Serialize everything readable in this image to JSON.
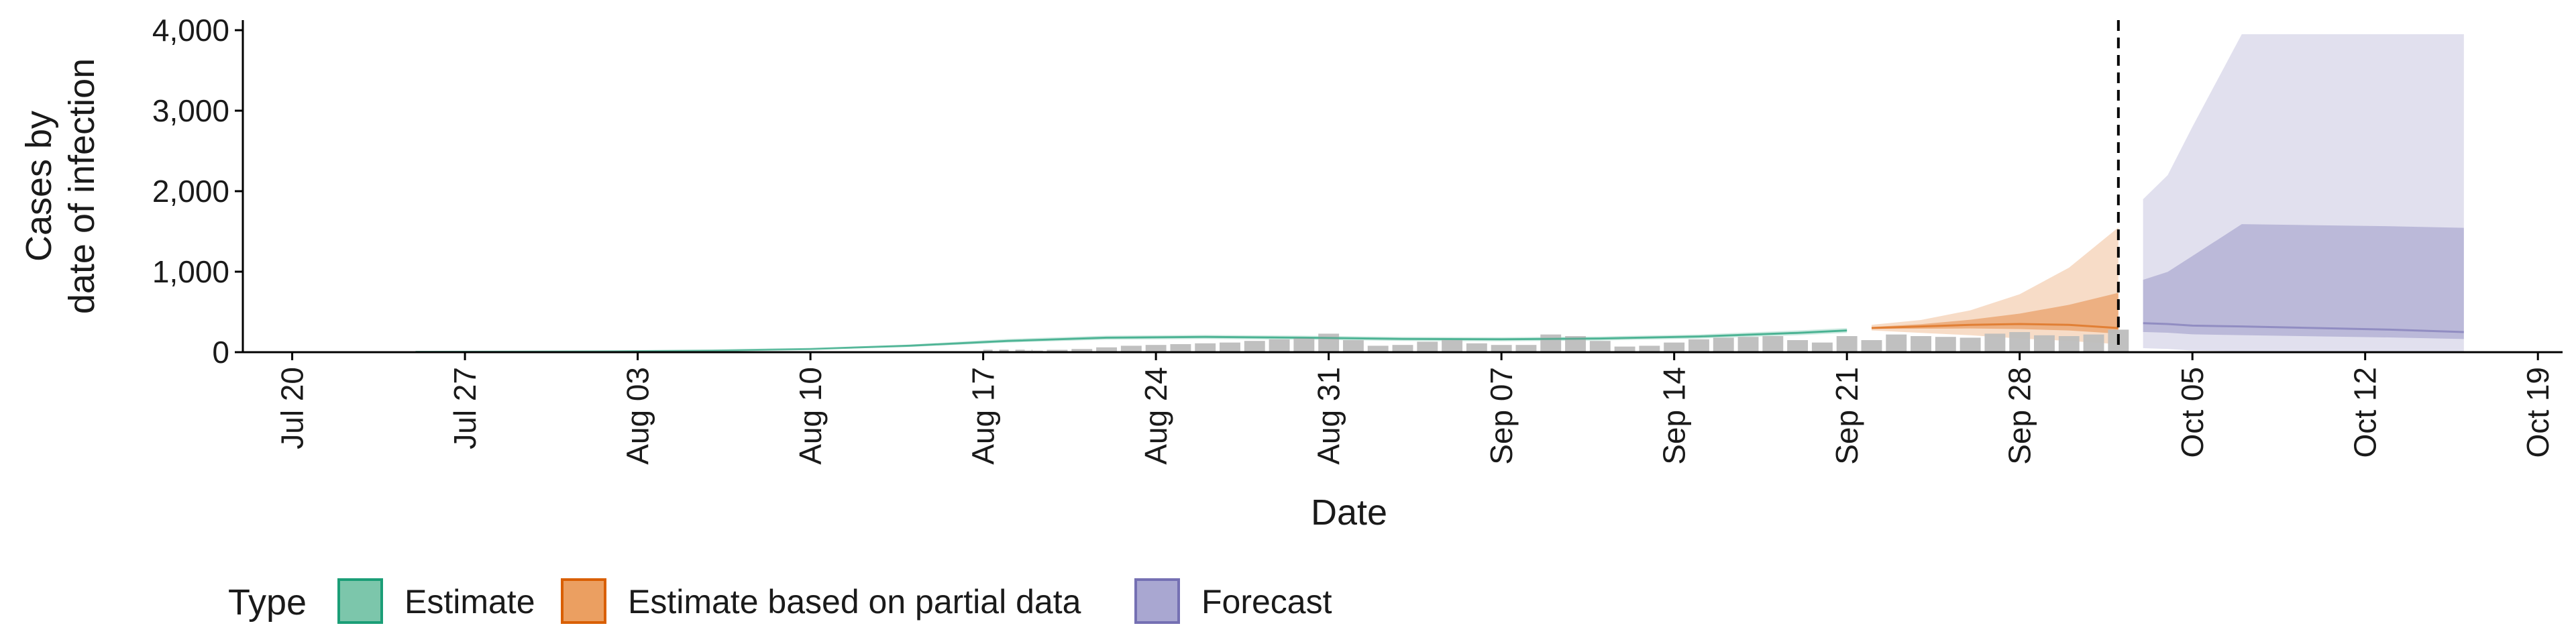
{
  "chart_data": {
    "type": "area",
    "title": "",
    "xlabel": "Date",
    "ylabel_lines": [
      "Cases by",
      "date of infection"
    ],
    "ylim": [
      0,
      4000
    ],
    "yticks": [
      0,
      1000,
      2000,
      3000,
      4000
    ],
    "ytick_labels": [
      "0",
      "1,000",
      "2,000",
      "3,000",
      "4,000"
    ],
    "x_range": [
      "2020-07-18",
      "2020-10-20"
    ],
    "xticks": [
      "2020-07-20",
      "2020-07-27",
      "2020-08-03",
      "2020-08-10",
      "2020-08-17",
      "2020-08-24",
      "2020-08-31",
      "2020-09-07",
      "2020-09-14",
      "2020-09-21",
      "2020-09-28",
      "2020-10-05",
      "2020-10-12",
      "2020-10-19"
    ],
    "xtick_labels": [
      "Jul 20",
      "Jul 27",
      "Aug 03",
      "Aug 10",
      "Aug 17",
      "Aug 24",
      "Aug 31",
      "Sep 07",
      "Sep 14",
      "Sep 21",
      "Sep 28",
      "Oct 05",
      "Oct 12",
      "Oct 19"
    ],
    "forecast_date_line": "2020-10-02",
    "legend": {
      "title": "Type",
      "position": "bottom",
      "entries": [
        {
          "label": "Estimate",
          "fill": "#7cc6ab",
          "stroke": "#1b9e77"
        },
        {
          "label": "Estimate based on partial data",
          "fill": "#eb9f61",
          "stroke": "#d95f02"
        },
        {
          "label": "Forecast",
          "fill": "#a9a7d1",
          "stroke": "#7570b3"
        }
      ]
    },
    "colors": {
      "estimate": "#1b9e77",
      "partial": "#d95f02",
      "forecast": "#7570b3",
      "reported_cases": "#bdbdbd"
    },
    "reported_cases": {
      "dates": [
        "2020-08-19",
        "2020-08-20",
        "2020-08-21",
        "2020-08-22",
        "2020-08-23",
        "2020-08-24",
        "2020-08-25",
        "2020-08-26",
        "2020-08-27",
        "2020-08-28",
        "2020-08-29",
        "2020-08-30",
        "2020-08-31",
        "2020-09-01",
        "2020-09-02",
        "2020-09-03",
        "2020-09-04",
        "2020-09-05",
        "2020-09-06",
        "2020-09-07",
        "2020-09-08",
        "2020-09-09",
        "2020-09-10",
        "2020-09-11",
        "2020-09-12",
        "2020-09-13",
        "2020-09-14",
        "2020-09-15",
        "2020-09-16",
        "2020-09-17",
        "2020-09-18",
        "2020-09-19",
        "2020-09-20",
        "2020-09-21",
        "2020-09-22",
        "2020-09-23",
        "2020-09-24",
        "2020-09-25",
        "2020-09-26",
        "2020-09-27",
        "2020-09-28",
        "2020-09-29",
        "2020-09-30",
        "2020-10-01",
        "2020-10-02"
      ],
      "values": [
        20,
        30,
        40,
        60,
        80,
        90,
        100,
        110,
        120,
        140,
        160,
        180,
        230,
        150,
        80,
        90,
        130,
        150,
        110,
        90,
        90,
        220,
        200,
        140,
        70,
        80,
        120,
        160,
        180,
        190,
        200,
        150,
        120,
        200,
        150,
        220,
        200,
        190,
        180,
        230,
        250,
        210,
        200,
        220,
        280
      ]
    },
    "series": [
      {
        "name": "Estimate",
        "dates": [
          "2020-07-25",
          "2020-07-29",
          "2020-08-02",
          "2020-08-06",
          "2020-08-10",
          "2020-08-14",
          "2020-08-18",
          "2020-08-22",
          "2020-08-26",
          "2020-08-30",
          "2020-09-03",
          "2020-09-07",
          "2020-09-11",
          "2020-09-15",
          "2020-09-19",
          "2020-09-21"
        ],
        "median": [
          4,
          6,
          10,
          20,
          40,
          80,
          140,
          180,
          190,
          180,
          165,
          160,
          170,
          195,
          240,
          270
        ],
        "lower_90": [
          2,
          4,
          7,
          15,
          32,
          65,
          120,
          155,
          165,
          155,
          140,
          135,
          145,
          170,
          210,
          240
        ],
        "upper_90": [
          6,
          8,
          13,
          25,
          48,
          95,
          165,
          205,
          215,
          205,
          190,
          185,
          195,
          220,
          270,
          300
        ]
      },
      {
        "name": "Estimate based on partial data",
        "dates": [
          "2020-09-22",
          "2020-09-24",
          "2020-09-26",
          "2020-09-28",
          "2020-09-30",
          "2020-10-02"
        ],
        "median": [
          300,
          320,
          340,
          350,
          340,
          300
        ],
        "lower_90": [
          270,
          240,
          210,
          170,
          140,
          100
        ],
        "upper_90": [
          340,
          400,
          520,
          720,
          1050,
          1550
        ]
      },
      {
        "name": "Forecast",
        "dates": [
          "2020-10-03",
          "2020-10-04",
          "2020-10-05",
          "2020-10-07",
          "2020-10-10",
          "2020-10-13",
          "2020-10-16"
        ],
        "median": [
          360,
          350,
          330,
          320,
          300,
          280,
          250
        ],
        "lower_90": [
          50,
          40,
          20,
          10,
          5,
          3,
          2
        ],
        "upper_90": [
          1900,
          2200,
          2800,
          3950,
          3950,
          3950,
          3950
        ]
      }
    ]
  }
}
